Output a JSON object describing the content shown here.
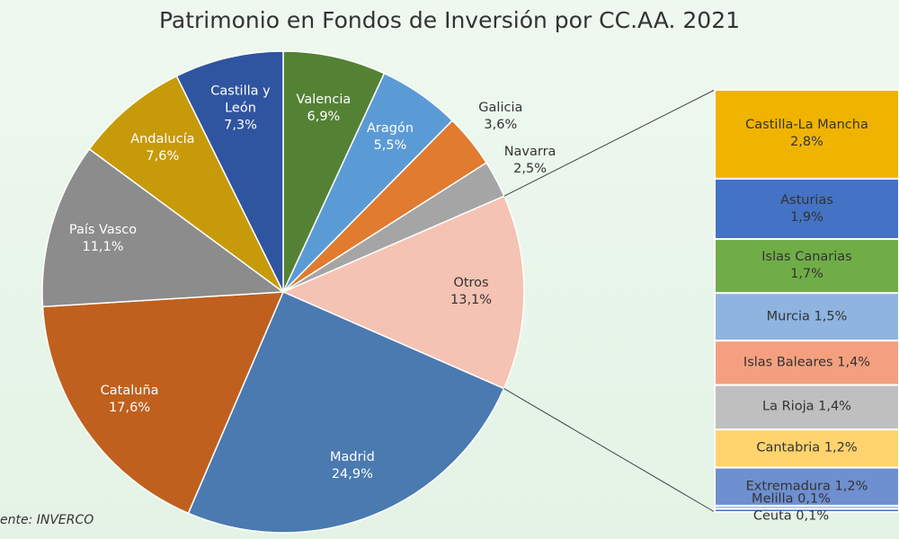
{
  "chart_data": {
    "type": "pie-of-bar",
    "title": "Patrimonio en Fondos de Inversión por CC.AA. 2021",
    "source": "ente: INVERCO",
    "categories": [
      "Valencia",
      "Aragón",
      "Galicia",
      "Navarra",
      "Otros",
      "Madrid",
      "Cataluña",
      "País Vasco",
      "Andalucía",
      "Castilla y León"
    ],
    "values": [
      6.9,
      5.5,
      3.6,
      2.5,
      13.1,
      24.9,
      17.6,
      11.1,
      7.6,
      7.3
    ],
    "value_labels": [
      "6,9%",
      "5,5%",
      "3,6%",
      "2,5%",
      "13,1%",
      "24,9%",
      "17,6%",
      "11,1%",
      "7,6%",
      "7,3%"
    ],
    "colors": [
      "#548235",
      "#5b9bd5",
      "#e07b30",
      "#a5a5a5",
      "#f5c3b3",
      "#4a7ab0",
      "#c0601e",
      "#8c8c8c",
      "#c79a0a",
      "#2f55a0"
    ],
    "bar": {
      "categories": [
        "Castilla-La Mancha",
        "Asturias",
        "Islas Canarias",
        "Murcia",
        "Islas Baleares",
        "La Rioja",
        "Cantabria",
        "Extremadura",
        "Melilla",
        "Ceuta"
      ],
      "values": [
        2.8,
        1.9,
        1.7,
        1.5,
        1.4,
        1.4,
        1.2,
        1.2,
        0.1,
        0.1
      ],
      "value_labels": [
        "2,8%",
        "1,9%",
        "1,7%",
        "1,5%",
        "1,4%",
        "1,4%",
        "1,2%",
        "1,2%",
        "0,1%",
        "0,1%"
      ],
      "colors": [
        "#f0b400",
        "#4472c4",
        "#70ad47",
        "#8fb4e0",
        "#f4a080",
        "#bfbfbf",
        "#ffd36e",
        "#6e8fd0",
        "#9db8e0",
        "#4472c4"
      ]
    }
  }
}
